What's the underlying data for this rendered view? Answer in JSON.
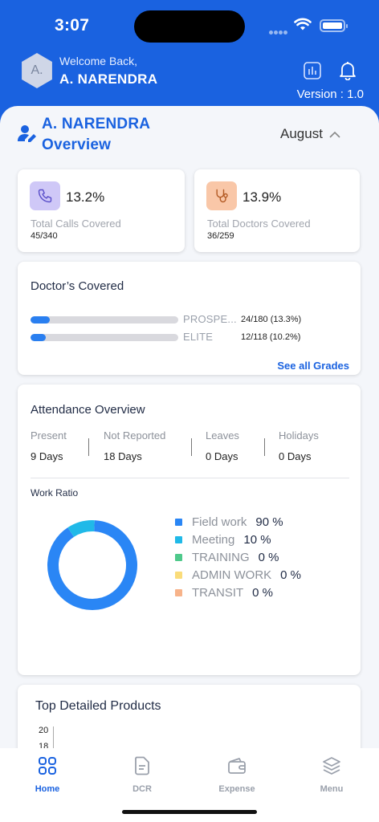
{
  "status_bar": {
    "time": "3:07"
  },
  "header": {
    "avatar_initials": "A.",
    "welcome": "Welcome Back,",
    "user_name": "A. NARENDRA",
    "version": "Version : 1.0",
    "icons": [
      "bar-chart-icon",
      "bell-icon"
    ]
  },
  "overview": {
    "title_line1": "A. NARENDRA",
    "title_line2": "Overview",
    "month": "August"
  },
  "stats": [
    {
      "pct": "13.2%",
      "label": "Total Calls Covered",
      "count": "45/340",
      "icon": "phone-icon",
      "icon_bg": "#cfc8f7",
      "icon_color": "#5a4fc9"
    },
    {
      "pct": "13.9%",
      "label": "Total Doctors Covered",
      "count": "36/259",
      "icon": "stethoscope-icon",
      "icon_bg": "#f9c7a8",
      "icon_color": "#b35a24"
    }
  ],
  "doctors_covered": {
    "title": "Doctor’s Covered",
    "rows": [
      {
        "grade": "PROSPE...",
        "value": "24/180 (13.3%)",
        "fraction": 0.133
      },
      {
        "grade": "ELITE",
        "value": "12/118 (10.2%)",
        "fraction": 0.102
      }
    ],
    "see_all": "See all Grades"
  },
  "attendance": {
    "title": "Attendance Overview",
    "columns": [
      {
        "label": "Present",
        "value": "9 Days"
      },
      {
        "label": "Not Reported",
        "value": "18 Days"
      },
      {
        "label": "Leaves",
        "value": "0 Days"
      },
      {
        "label": "Holidays",
        "value": "0 Days"
      }
    ],
    "work_ratio_title": "Work Ratio"
  },
  "chart_data": {
    "type": "pie",
    "title": "Work Ratio",
    "donut": true,
    "slices": [
      {
        "name": "Field work",
        "value": 90,
        "label": "90 %",
        "color": "#2a86f5"
      },
      {
        "name": "Meeting",
        "value": 10,
        "label": "10 %",
        "color": "#20b9e8"
      },
      {
        "name": "TRAINING",
        "value": 0,
        "label": "0 %",
        "color": "#4fc98b"
      },
      {
        "name": "ADMIN WORK",
        "value": 0,
        "label": "0 %",
        "color": "#fadc7a"
      },
      {
        "name": "TRANSIT",
        "value": 0,
        "label": "0 %",
        "color": "#f7b38a"
      }
    ]
  },
  "top_products": {
    "title": "Top Detailed Products",
    "y_ticks": [
      "20",
      "18"
    ]
  },
  "tabbar": [
    {
      "label": "Home",
      "icon": "grid-icon",
      "active": true
    },
    {
      "label": "DCR",
      "icon": "document-icon",
      "active": false
    },
    {
      "label": "Expense",
      "icon": "wallet-icon",
      "active": false
    },
    {
      "label": "Menu",
      "icon": "layers-icon",
      "active": false
    }
  ],
  "colors": {
    "brand": "#1a62e0",
    "background": "#f4f6fa",
    "bar_fill": "#2a7ff0"
  }
}
